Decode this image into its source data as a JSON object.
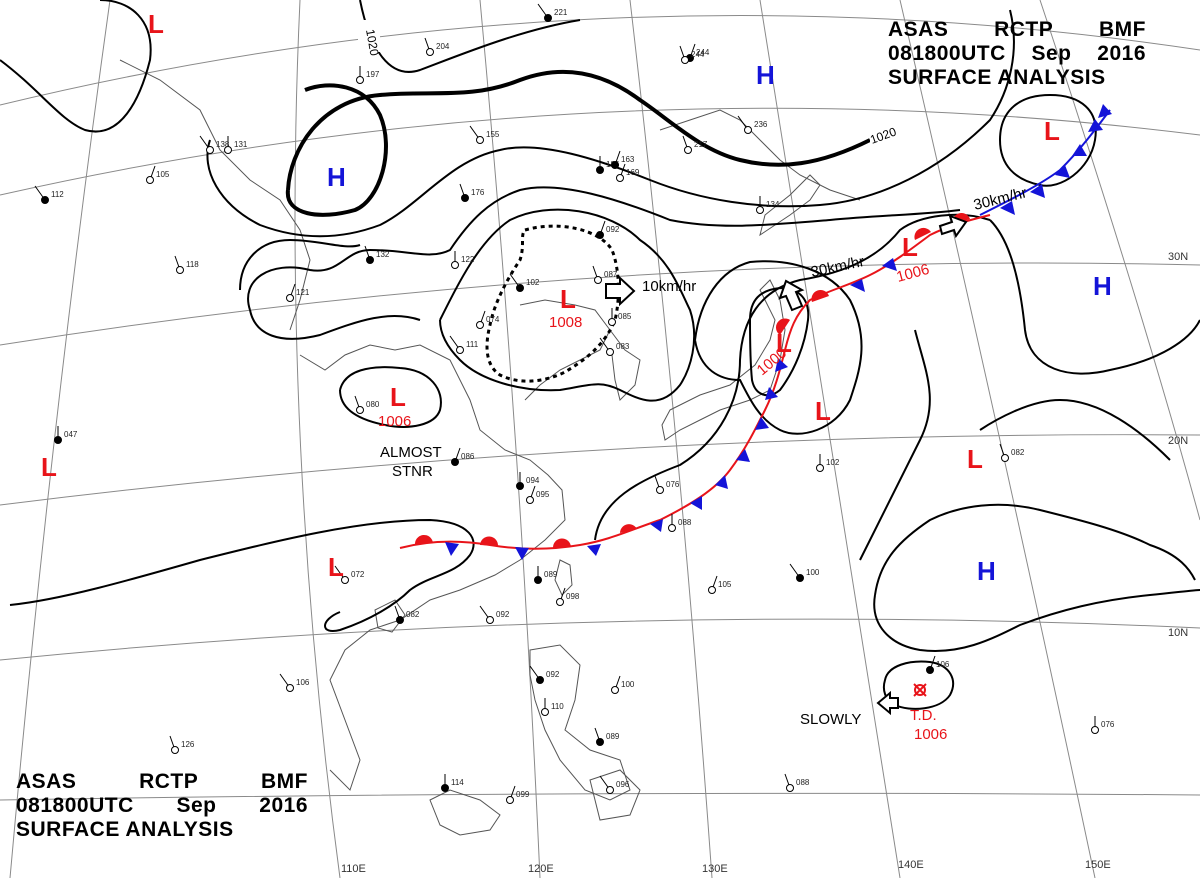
{
  "header": {
    "line1": [
      "ASAS",
      "RCTP",
      "BMF"
    ],
    "line2": [
      "081800UTC",
      "Sep",
      "2016"
    ],
    "line3": "SURFACE ANALYSIS"
  },
  "colors": {
    "low": "#e8141a",
    "high": "#1414d8",
    "warm_front": "#e8141a",
    "cold_front": "#1414d8",
    "isobar": "#000000",
    "grid": "#8a8a8a",
    "coast": "#555555"
  },
  "isobar_labels": [
    "1020",
    "1020"
  ],
  "pressure_systems": [
    {
      "type": "L",
      "value": ""
    },
    {
      "type": "H",
      "value": ""
    },
    {
      "type": "H",
      "value": ""
    },
    {
      "type": "L",
      "value": ""
    },
    {
      "type": "L",
      "value": "1008"
    },
    {
      "type": "L",
      "value": "1006"
    },
    {
      "type": "L",
      "value": "1006"
    },
    {
      "type": "L",
      "value": "1000"
    },
    {
      "type": "L",
      "value": ""
    },
    {
      "type": "L",
      "value": ""
    },
    {
      "type": "L",
      "value": ""
    },
    {
      "type": "L",
      "value": ""
    },
    {
      "type": "H",
      "value": ""
    },
    {
      "type": "H",
      "value": ""
    }
  ],
  "movements": [
    "10km/hr",
    "30km/hr",
    "30km/hr",
    "SLOWLY"
  ],
  "annotations": {
    "stationary_1": "ALMOST",
    "stationary_2": "STNR",
    "tropical_depression": "T.D.",
    "td_pressure": "1006"
  },
  "lat_labels": [
    "30N",
    "20N",
    "10N"
  ],
  "lon_labels": [
    "110E",
    "120E",
    "130E",
    "140E",
    "150E"
  ],
  "station_samples": [
    "221",
    "204",
    "197",
    "244",
    "236",
    "217",
    "186",
    "169",
    "155",
    "132",
    "122",
    "121",
    "102",
    "087",
    "085",
    "092",
    "083",
    "076",
    "089",
    "098",
    "092",
    "082",
    "088",
    "105",
    "100",
    "082",
    "102",
    "086",
    "106",
    "126",
    "114",
    "099",
    "096",
    "089",
    "110",
    "100",
    "092",
    "088",
    "076",
    "106",
    "072",
    "080",
    "047",
    "074",
    "111",
    "176",
    "131",
    "105",
    "112",
    "118",
    "134",
    "163",
    "138",
    "244",
    "094",
    "095"
  ]
}
